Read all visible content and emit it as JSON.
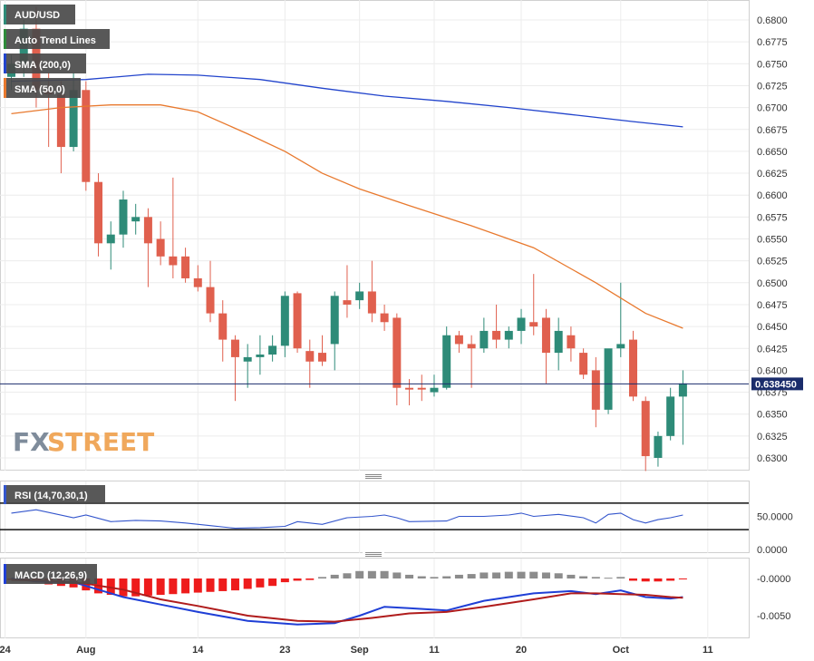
{
  "colors": {
    "up": "#2e8b78",
    "down": "#e0604e",
    "sma200": "#2244cc",
    "sma50": "#e8792e",
    "macd_line": "#1f3fd6",
    "signal_line": "#b01c1c",
    "hist_pos": "#8c8c8c",
    "hist_neg": "#ee1c1c",
    "rsi_line": "#3355cc",
    "price_line": "#1a2c6b",
    "watermark_fx": "#7f8c9b",
    "watermark_street": "#f0a85c"
  },
  "legend": {
    "symbol": "AUD/USD",
    "trend": "Auto Trend Lines",
    "sma200": "SMA (200,0)",
    "sma50": "SMA (50,0)",
    "rsi": "RSI (14,70,30,1)",
    "macd": "MACD (12,26,9)"
  },
  "price_tag": "0.638450",
  "watermark": {
    "fx": "FX",
    "street": "STREET"
  },
  "axes": {
    "price_ticks": [
      "0.6800",
      "0.6775",
      "0.6750",
      "0.6725",
      "0.6700",
      "0.6675",
      "0.6650",
      "0.6625",
      "0.6600",
      "0.6575",
      "0.6550",
      "0.6525",
      "0.6500",
      "0.6475",
      "0.6450",
      "0.6425",
      "0.6400",
      "0.6375",
      "0.6350",
      "0.6325",
      "0.6300"
    ],
    "rsi_ticks": [
      "50.0000",
      "0.0000"
    ],
    "macd_ticks": [
      "-0.0000",
      "-0.0050"
    ],
    "x_ticks": [
      {
        "label": "24",
        "index": -0.5
      },
      {
        "label": "Aug",
        "index": 6
      },
      {
        "label": "14",
        "index": 15
      },
      {
        "label": "23",
        "index": 22
      },
      {
        "label": "Sep",
        "index": 28
      },
      {
        "label": "11",
        "index": 34
      },
      {
        "label": "20",
        "index": 41
      },
      {
        "label": "Oct",
        "index": 49
      },
      {
        "label": "11",
        "index": 56
      }
    ]
  },
  "chart_data": {
    "type": "candlestick",
    "ylim": [
      0.6285,
      0.6823
    ],
    "last_price": 0.63845,
    "candles": [
      {
        "o": 0.6735,
        "h": 0.676,
        "l": 0.672,
        "c": 0.675
      },
      {
        "o": 0.675,
        "h": 0.68,
        "l": 0.6735,
        "c": 0.679
      },
      {
        "o": 0.679,
        "h": 0.6815,
        "l": 0.67,
        "c": 0.672
      },
      {
        "o": 0.672,
        "h": 0.674,
        "l": 0.6655,
        "c": 0.6715
      },
      {
        "o": 0.6715,
        "h": 0.673,
        "l": 0.6625,
        "c": 0.6655
      },
      {
        "o": 0.6655,
        "h": 0.674,
        "l": 0.665,
        "c": 0.672
      },
      {
        "o": 0.672,
        "h": 0.673,
        "l": 0.6605,
        "c": 0.6615
      },
      {
        "o": 0.6615,
        "h": 0.6625,
        "l": 0.653,
        "c": 0.6545
      },
      {
        "o": 0.6545,
        "h": 0.657,
        "l": 0.6515,
        "c": 0.6555
      },
      {
        "o": 0.6555,
        "h": 0.6605,
        "l": 0.654,
        "c": 0.6595
      },
      {
        "o": 0.657,
        "h": 0.659,
        "l": 0.6555,
        "c": 0.6575
      },
      {
        "o": 0.6575,
        "h": 0.6585,
        "l": 0.6495,
        "c": 0.6545
      },
      {
        "o": 0.655,
        "h": 0.657,
        "l": 0.652,
        "c": 0.653
      },
      {
        "o": 0.653,
        "h": 0.662,
        "l": 0.6505,
        "c": 0.652
      },
      {
        "o": 0.653,
        "h": 0.654,
        "l": 0.65,
        "c": 0.6505
      },
      {
        "o": 0.6505,
        "h": 0.652,
        "l": 0.649,
        "c": 0.6495
      },
      {
        "o": 0.6495,
        "h": 0.6525,
        "l": 0.6455,
        "c": 0.6465
      },
      {
        "o": 0.6465,
        "h": 0.648,
        "l": 0.641,
        "c": 0.6435
      },
      {
        "o": 0.6435,
        "h": 0.644,
        "l": 0.6365,
        "c": 0.6415
      },
      {
        "o": 0.641,
        "h": 0.643,
        "l": 0.638,
        "c": 0.6415
      },
      {
        "o": 0.6415,
        "h": 0.644,
        "l": 0.6395,
        "c": 0.6418
      },
      {
        "o": 0.6418,
        "h": 0.644,
        "l": 0.641,
        "c": 0.6428
      },
      {
        "o": 0.6428,
        "h": 0.649,
        "l": 0.6415,
        "c": 0.6485
      },
      {
        "o": 0.6488,
        "h": 0.649,
        "l": 0.642,
        "c": 0.6425
      },
      {
        "o": 0.6422,
        "h": 0.6435,
        "l": 0.638,
        "c": 0.641
      },
      {
        "o": 0.642,
        "h": 0.644,
        "l": 0.6405,
        "c": 0.641
      },
      {
        "o": 0.643,
        "h": 0.649,
        "l": 0.64,
        "c": 0.6485
      },
      {
        "o": 0.648,
        "h": 0.652,
        "l": 0.646,
        "c": 0.6475
      },
      {
        "o": 0.648,
        "h": 0.65,
        "l": 0.647,
        "c": 0.649
      },
      {
        "o": 0.649,
        "h": 0.6525,
        "l": 0.6455,
        "c": 0.6465
      },
      {
        "o": 0.6465,
        "h": 0.6475,
        "l": 0.6445,
        "c": 0.6455
      },
      {
        "o": 0.646,
        "h": 0.6465,
        "l": 0.636,
        "c": 0.638
      },
      {
        "o": 0.638,
        "h": 0.639,
        "l": 0.636,
        "c": 0.6378
      },
      {
        "o": 0.638,
        "h": 0.6395,
        "l": 0.6365,
        "c": 0.6378
      },
      {
        "o": 0.6375,
        "h": 0.6395,
        "l": 0.637,
        "c": 0.638
      },
      {
        "o": 0.638,
        "h": 0.645,
        "l": 0.6378,
        "c": 0.644
      },
      {
        "o": 0.644,
        "h": 0.6445,
        "l": 0.642,
        "c": 0.643
      },
      {
        "o": 0.643,
        "h": 0.644,
        "l": 0.638,
        "c": 0.6425
      },
      {
        "o": 0.6425,
        "h": 0.646,
        "l": 0.642,
        "c": 0.6445
      },
      {
        "o": 0.6445,
        "h": 0.6475,
        "l": 0.6425,
        "c": 0.6435
      },
      {
        "o": 0.6435,
        "h": 0.645,
        "l": 0.6425,
        "c": 0.6445
      },
      {
        "o": 0.6445,
        "h": 0.647,
        "l": 0.643,
        "c": 0.646
      },
      {
        "o": 0.6455,
        "h": 0.651,
        "l": 0.644,
        "c": 0.645
      },
      {
        "o": 0.646,
        "h": 0.647,
        "l": 0.6385,
        "c": 0.642
      },
      {
        "o": 0.642,
        "h": 0.646,
        "l": 0.64,
        "c": 0.6445
      },
      {
        "o": 0.644,
        "h": 0.645,
        "l": 0.641,
        "c": 0.6425
      },
      {
        "o": 0.642,
        "h": 0.6425,
        "l": 0.639,
        "c": 0.6395
      },
      {
        "o": 0.64,
        "h": 0.6415,
        "l": 0.6335,
        "c": 0.6355
      },
      {
        "o": 0.6355,
        "h": 0.642,
        "l": 0.635,
        "c": 0.6425
      },
      {
        "o": 0.6425,
        "h": 0.65,
        "l": 0.6415,
        "c": 0.643
      },
      {
        "o": 0.6435,
        "h": 0.6445,
        "l": 0.6365,
        "c": 0.637
      },
      {
        "o": 0.6365,
        "h": 0.637,
        "l": 0.6285,
        "c": 0.6302
      },
      {
        "o": 0.63,
        "h": 0.633,
        "l": 0.629,
        "c": 0.6325
      },
      {
        "o": 0.6325,
        "h": 0.638,
        "l": 0.632,
        "c": 0.637
      },
      {
        "o": 0.637,
        "h": 0.64,
        "l": 0.6315,
        "c": 0.6385
      }
    ],
    "sma200": [
      [
        0,
        0.673
      ],
      [
        6,
        0.6732
      ],
      [
        11,
        0.6738
      ],
      [
        15,
        0.6737
      ],
      [
        20,
        0.6732
      ],
      [
        25,
        0.6722
      ],
      [
        30,
        0.6713
      ],
      [
        35,
        0.6707
      ],
      [
        40,
        0.67
      ],
      [
        45,
        0.6692
      ],
      [
        50,
        0.6684
      ],
      [
        54,
        0.6678
      ]
    ],
    "sma50": [
      [
        0,
        0.6693
      ],
      [
        4,
        0.67
      ],
      [
        8,
        0.6703
      ],
      [
        12,
        0.6703
      ],
      [
        15,
        0.6695
      ],
      [
        19,
        0.667
      ],
      [
        22,
        0.665
      ],
      [
        25,
        0.6625
      ],
      [
        28,
        0.6607
      ],
      [
        32,
        0.6588
      ],
      [
        37,
        0.6565
      ],
      [
        42,
        0.654
      ],
      [
        47,
        0.65
      ],
      [
        51,
        0.6465
      ],
      [
        54,
        0.6448
      ]
    ],
    "rsi": {
      "upper": 70,
      "lower": 30,
      "ylim": [
        0,
        100
      ],
      "values": [
        [
          0,
          55
        ],
        [
          2,
          60
        ],
        [
          5,
          48
        ],
        [
          6,
          52
        ],
        [
          8,
          42
        ],
        [
          10,
          44
        ],
        [
          12,
          43
        ],
        [
          14,
          40
        ],
        [
          16,
          36
        ],
        [
          18,
          32
        ],
        [
          20,
          33
        ],
        [
          22,
          35
        ],
        [
          23,
          42
        ],
        [
          25,
          38
        ],
        [
          27,
          48
        ],
        [
          29,
          50
        ],
        [
          30,
          52
        ],
        [
          31,
          48
        ],
        [
          32,
          42
        ],
        [
          35,
          43
        ],
        [
          36,
          50
        ],
        [
          38,
          50
        ],
        [
          40,
          52
        ],
        [
          41,
          55
        ],
        [
          42,
          50
        ],
        [
          44,
          53
        ],
        [
          46,
          48
        ],
        [
          47,
          40
        ],
        [
          48,
          53
        ],
        [
          49,
          55
        ],
        [
          50,
          45
        ],
        [
          51,
          40
        ],
        [
          52,
          45
        ],
        [
          53,
          48
        ],
        [
          54,
          52
        ]
      ]
    },
    "macd": {
      "ylim": [
        -0.0068,
        0.0013
      ],
      "macd_line": [
        [
          0,
          0.0
        ],
        [
          2,
          -0.0004
        ],
        [
          5,
          -0.0005
        ],
        [
          6,
          -0.001
        ],
        [
          9,
          -0.0025
        ],
        [
          12,
          -0.0035
        ],
        [
          15,
          -0.0045
        ],
        [
          19,
          -0.0057
        ],
        [
          23,
          -0.0062
        ],
        [
          26,
          -0.006
        ],
        [
          28,
          -0.005
        ],
        [
          30,
          -0.0038
        ],
        [
          32,
          -0.004
        ],
        [
          35,
          -0.0043
        ],
        [
          38,
          -0.003
        ],
        [
          42,
          -0.002
        ],
        [
          45,
          -0.0017
        ],
        [
          47,
          -0.0021
        ],
        [
          49,
          -0.0016
        ],
        [
          51,
          -0.0025
        ],
        [
          53,
          -0.0027
        ],
        [
          54,
          -0.0025
        ]
      ],
      "signal_line": [
        [
          0,
          -0.0002
        ],
        [
          3,
          -0.0003
        ],
        [
          6,
          -0.0007
        ],
        [
          9,
          -0.0015
        ],
        [
          12,
          -0.0028
        ],
        [
          15,
          -0.0037
        ],
        [
          19,
          -0.005
        ],
        [
          23,
          -0.0057
        ],
        [
          26,
          -0.0058
        ],
        [
          29,
          -0.0053
        ],
        [
          32,
          -0.0047
        ],
        [
          35,
          -0.0045
        ],
        [
          38,
          -0.0038
        ],
        [
          42,
          -0.0028
        ],
        [
          45,
          -0.002
        ],
        [
          47,
          -0.002
        ],
        [
          49,
          -0.0021
        ],
        [
          51,
          -0.0022
        ],
        [
          53,
          -0.0025
        ],
        [
          54,
          -0.0026
        ]
      ],
      "histogram": [
        -0.0002,
        -0.0003,
        -0.0005,
        -0.0008,
        -0.001,
        -0.0012,
        -0.0016,
        -0.002,
        -0.0022,
        -0.0024,
        -0.0024,
        -0.0023,
        -0.0022,
        -0.0021,
        -0.002,
        -0.0019,
        -0.0018,
        -0.0017,
        -0.0016,
        -0.0014,
        -0.0012,
        -0.001,
        -0.0005,
        -0.0003,
        -0.0002,
        0.0002,
        0.0005,
        0.0007,
        0.001,
        0.001,
        0.001,
        0.0008,
        0.0005,
        0.0003,
        0.0002,
        0.0003,
        0.0005,
        0.0006,
        0.0008,
        0.0008,
        0.0009,
        0.0009,
        0.0009,
        0.0008,
        0.0007,
        0.0005,
        0.0003,
        0.0002,
        0.0001,
        0.0002,
        -0.0003,
        -0.0004,
        -0.0004,
        -0.0003,
        -0.0001
      ]
    }
  }
}
